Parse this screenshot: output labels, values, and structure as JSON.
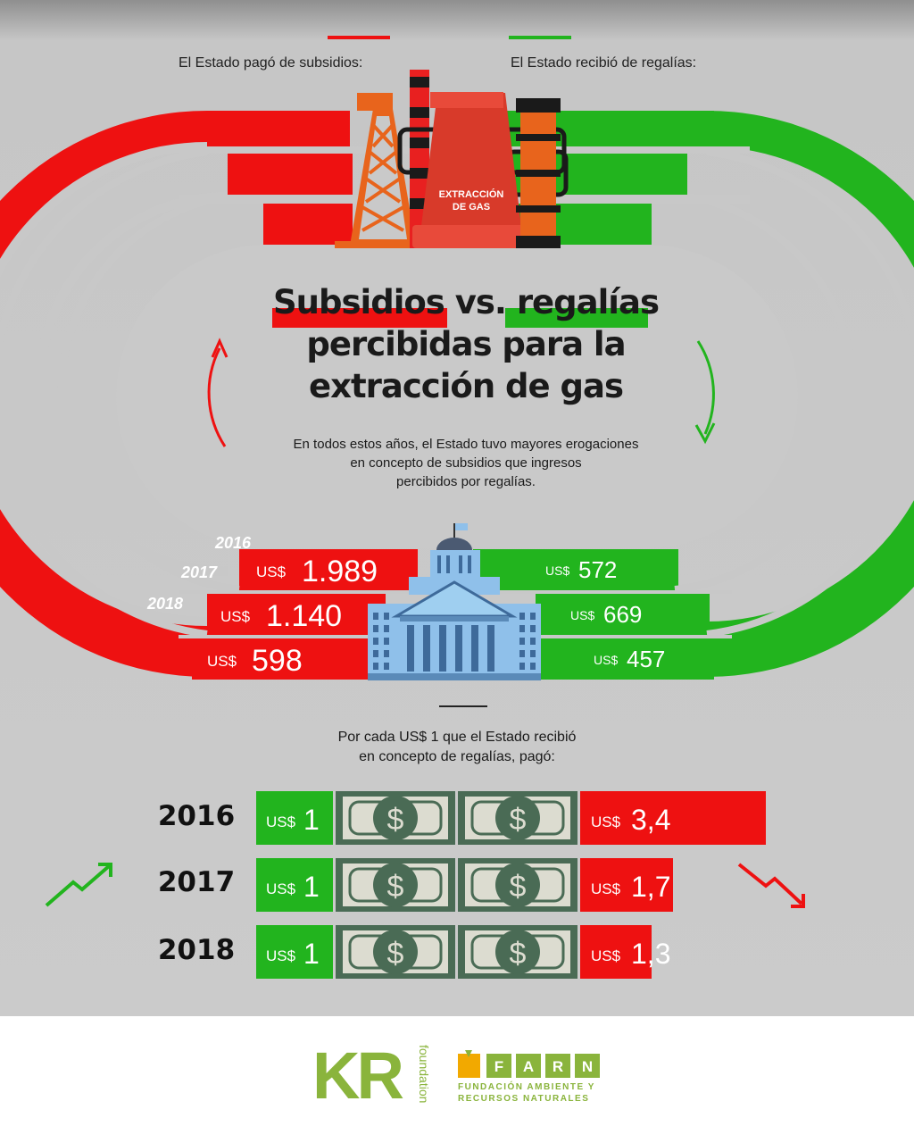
{
  "legend": {
    "subsidies": "El Estado pagó de subsidios:",
    "royalties": "El Estado recibió de regalías:"
  },
  "title": {
    "word_red": "Subsidios",
    "word_vs": "vs.",
    "word_green": "regalías",
    "line2": "percibidas para la",
    "line3": "extracción de gas"
  },
  "subtitle": {
    "line1": "En todos estos años, el Estado tuvo mayores erogaciones",
    "line2": "en concepto de subsidios que ingresos",
    "line3": "percibidos por regalías."
  },
  "plant_label": {
    "line1": "EXTRACCIÓN",
    "line2": "DE GAS"
  },
  "currency": "US$",
  "chart_data": [
    {
      "type": "bar",
      "title": "Subsidios vs. regalías percibidas para la extracción de gas",
      "categories": [
        "2016",
        "2017",
        "2018"
      ],
      "series": [
        {
          "name": "El Estado pagó de subsidios:",
          "values": [
            1989,
            1140,
            598
          ],
          "labels": [
            "1.989",
            "1.140",
            "598"
          ],
          "color": "#ee1111"
        },
        {
          "name": "El Estado recibió de regalías:",
          "values": [
            572,
            669,
            457
          ],
          "labels": [
            "572",
            "669",
            "457"
          ],
          "color": "#22b41e"
        }
      ]
    },
    {
      "type": "bar",
      "title": "Por cada US$ 1 que el Estado recibió en concepto de regalías, pagó:",
      "categories": [
        "2016",
        "2017",
        "2018"
      ],
      "received": [
        1,
        1,
        1
      ],
      "received_labels": [
        "1",
        "1",
        "1"
      ],
      "paid": [
        3.4,
        1.7,
        1.3
      ],
      "paid_labels": [
        "3,4",
        "1,7",
        "1,3"
      ],
      "xlim": [
        0,
        3.4
      ]
    }
  ],
  "caption": {
    "line1": "Por cada US$ 1 que el Estado recibió",
    "line2": "en concepto de regalías, pagó:"
  },
  "colors": {
    "red": "#ee1111",
    "green": "#22b41e",
    "dark_green": "#4a6b55",
    "bill": "#dcdcd0"
  },
  "icons": [
    "oil-derrick-icon",
    "factory-chimney-icon",
    "cooling-tower-icon",
    "congress-building-icon",
    "dollar-bill-icon",
    "trend-up-arrow-icon",
    "trend-down-arrow-icon"
  ],
  "footer": {
    "kr_logo": "KR",
    "kr_sub": "foundation",
    "farn_letters": [
      "F",
      "A",
      "R",
      "N"
    ],
    "farn_line1": "FUNDACIÓN AMBIENTE Y",
    "farn_line2": "RECURSOS NATURALES"
  }
}
